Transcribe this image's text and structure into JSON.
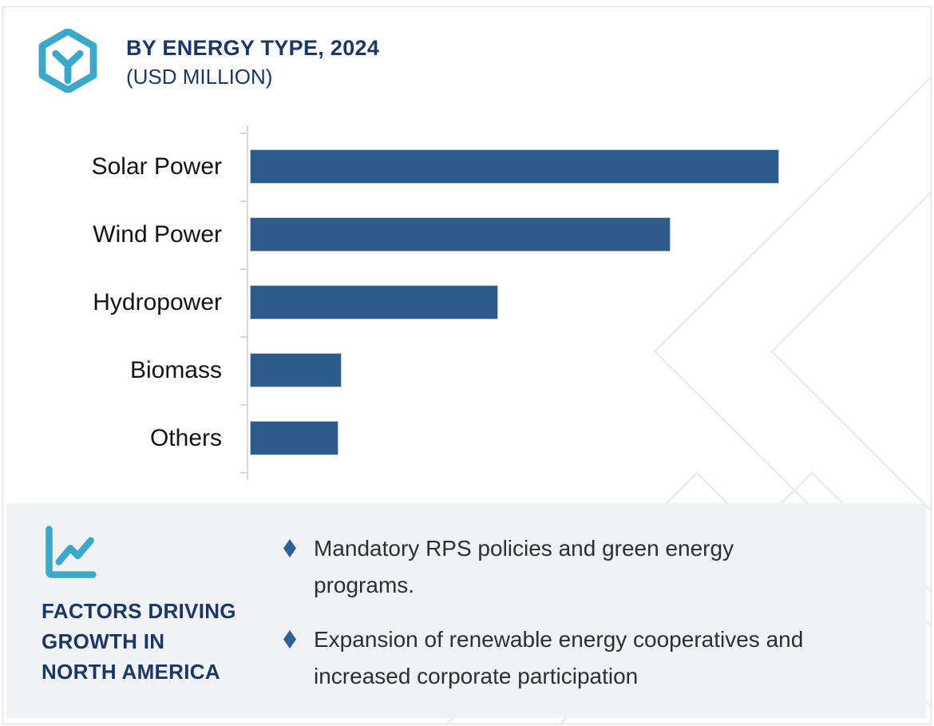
{
  "header": {
    "logo_icon": "hexagon-cube-icon",
    "title": "BY ENERGY TYPE, 2024",
    "subtitle": "(USD MILLION)"
  },
  "chart_data": {
    "type": "bar",
    "orientation": "horizontal",
    "title": "BY ENERGY TYPE, 2024 (USD MILLION)",
    "categories": [
      "Solar Power",
      "Wind Power",
      "Hydropower",
      "Biomass",
      "Others"
    ],
    "values": [
      100,
      79.5,
      46.9,
      17.3,
      16.7
    ],
    "values_note": "relative bar lengths as % of longest bar; no numeric axis labels are shown in the image",
    "xlabel": "",
    "ylabel": "",
    "gridlines": false,
    "legend": false,
    "axis_tick_count": 6
  },
  "panel": {
    "icon": "line-chart-icon",
    "heading": "FACTORS DRIVING\nGROWTH IN\nNORTH AMERICA",
    "bullets": [
      {
        "icon": "diamond-bullet-icon",
        "text": "Mandatory RPS policies and green energy\nprograms."
      },
      {
        "icon": "diamond-bullet-icon",
        "text": "Expansion of renewable energy cooperatives and\nincreased corporate participation"
      }
    ]
  },
  "colors": {
    "navy": "#1b3767",
    "teal": "#3aa9c9",
    "bar_blue": "#2d5c8a",
    "bar_edge": "#b9cdde",
    "bullet_blue": "#2e5f95",
    "panel_bg": "#f0f2f6",
    "watermark_gray": "#ededed",
    "axis_gray": "#d9d9d9",
    "text_dark": "#2f2f2f"
  }
}
